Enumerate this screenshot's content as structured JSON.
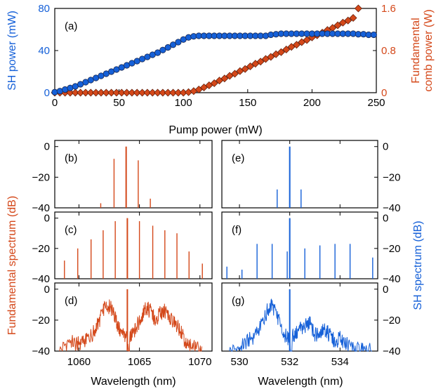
{
  "colors": {
    "sh": "#1560d8",
    "fund": "#d4481a",
    "dot_edge": "#1a2a55",
    "axis": "#000000"
  },
  "chart_data": [
    {
      "id": "a",
      "type": "scatter",
      "panel_label": "(a)",
      "xlabel": "Pump power (mW)",
      "ylabel_left": "SH power (mW)",
      "ylabel_right_lines": [
        "Fundamental",
        "comb power (W)"
      ],
      "xlim": [
        0,
        250
      ],
      "ylim_left": [
        0,
        80
      ],
      "ylim_right": [
        0,
        1.6
      ],
      "x_ticks": [
        "0",
        "50",
        "100",
        "150",
        "200",
        "250"
      ],
      "y_ticks_left": [
        "0",
        "40",
        "80"
      ],
      "y_ticks_right": [
        "0",
        "0.8",
        "1.6"
      ],
      "series": [
        {
          "axis": "left",
          "marker": "circle",
          "x": [
            0,
            4,
            8,
            12,
            16,
            20,
            24,
            28,
            32,
            36,
            40,
            44,
            48,
            52,
            56,
            60,
            64,
            68,
            72,
            76,
            80,
            84,
            88,
            92,
            96,
            100,
            104,
            108,
            112,
            116,
            120,
            124,
            128,
            132,
            136,
            140,
            144,
            148,
            152,
            156,
            160,
            164,
            168,
            172,
            176,
            180,
            184,
            188,
            192,
            196,
            200,
            204,
            208,
            212,
            216,
            220,
            224,
            228,
            232,
            236,
            240,
            244,
            248
          ],
          "y": [
            0.5,
            1.5,
            3,
            4.5,
            6,
            8,
            10,
            12,
            14,
            16,
            18,
            20,
            22,
            24,
            26,
            28,
            30,
            32,
            34,
            36,
            38,
            40.5,
            43,
            45.5,
            48,
            50.5,
            52.5,
            53.5,
            54,
            54,
            54,
            54,
            54,
            54,
            54,
            54,
            54,
            54,
            54,
            54,
            54,
            54,
            55,
            55.5,
            56,
            56,
            56,
            56,
            56,
            56,
            56,
            56,
            56,
            56,
            56,
            56,
            56,
            56,
            56,
            55.5,
            55.5,
            55,
            55
          ]
        },
        {
          "axis": "right",
          "marker": "diamond",
          "x": [
            0,
            4,
            8,
            12,
            16,
            20,
            24,
            28,
            32,
            36,
            40,
            44,
            48,
            52,
            56,
            60,
            64,
            68,
            72,
            76,
            80,
            84,
            88,
            92,
            96,
            100,
            104,
            108,
            112,
            116,
            120,
            124,
            128,
            132,
            136,
            140,
            144,
            148,
            152,
            156,
            160,
            164,
            168,
            172,
            176,
            180,
            184,
            188,
            192,
            196,
            200,
            204,
            208,
            212,
            216,
            220,
            224,
            228,
            232,
            236
          ],
          "y": [
            0,
            0,
            0,
            0,
            0,
            0,
            0,
            0,
            0,
            0,
            0,
            0,
            0,
            0,
            0,
            0,
            0,
            0,
            0,
            0,
            0,
            0,
            0,
            0,
            0,
            0,
            0.01,
            0.03,
            0.06,
            0.1,
            0.14,
            0.18,
            0.23,
            0.27,
            0.32,
            0.36,
            0.41,
            0.45,
            0.5,
            0.55,
            0.59,
            0.64,
            0.68,
            0.73,
            0.77,
            0.82,
            0.87,
            0.91,
            0.96,
            1.0,
            1.05,
            1.09,
            1.14,
            1.19,
            1.23,
            1.28,
            1.33,
            1.37,
            1.42,
            1.6
          ]
        }
      ]
    },
    {
      "id": "b",
      "type": "line",
      "style": "sticks",
      "color": "fund",
      "panel_label": "(b)",
      "xlim": [
        1058,
        1071
      ],
      "ylim": [
        -40,
        4
      ],
      "y_ticks": [
        "0",
        "-20",
        "-40"
      ],
      "x": [
        1061.8,
        1062.9,
        1063.9,
        1064.9,
        1065.9
      ],
      "y": [
        -37,
        -8,
        0,
        -9,
        -34
      ]
    },
    {
      "id": "c",
      "type": "line",
      "style": "sticks",
      "color": "fund",
      "panel_label": "(c)",
      "xlim": [
        1058,
        1071
      ],
      "ylim": [
        -40,
        4
      ],
      "y_ticks": [
        "0",
        "-20",
        "-40"
      ],
      "x": [
        1058.8,
        1059.9,
        1061.0,
        1062.0,
        1063.0,
        1064.0,
        1065.0,
        1066.1,
        1067.1,
        1068.1,
        1069.1,
        1070.2
      ],
      "y": [
        -28,
        -20,
        -14,
        -8,
        -2,
        0,
        -2,
        -5,
        -8,
        -10,
        -22,
        -30
      ]
    },
    {
      "id": "d",
      "type": "line",
      "style": "noisy",
      "color": "fund",
      "panel_label": "(d)",
      "xlim": [
        1058,
        1071
      ],
      "ylim": [
        -40,
        4
      ],
      "y_ticks": [
        "0",
        "-20",
        "-40"
      ],
      "x_ticks": [
        "1060",
        "1065",
        "1070"
      ],
      "xlabel": "Wavelength (nm)",
      "x": [
        1058.4,
        1059.2,
        1059.8,
        1060.2,
        1060.7,
        1061.2,
        1061.6,
        1062.0,
        1062.3,
        1062.6,
        1062.9,
        1063.2,
        1063.6,
        1064.0,
        1064.4,
        1064.8,
        1065.2,
        1065.5,
        1065.9,
        1066.3,
        1066.7,
        1067.1,
        1067.5,
        1067.9,
        1068.3,
        1068.7,
        1069.1,
        1069.6,
        1070.2
      ],
      "y": [
        -40,
        -33,
        -36,
        -34,
        -32,
        -28,
        -22,
        -14,
        -10,
        -12,
        -16,
        -24,
        -30,
        0,
        -30,
        -24,
        -18,
        -12,
        -14,
        -20,
        -16,
        -14,
        -18,
        -22,
        -26,
        -32,
        -36,
        -38,
        -40
      ]
    },
    {
      "id": "e",
      "type": "line",
      "style": "sticks",
      "color": "sh",
      "panel_label": "(e)",
      "xlim": [
        529.3,
        535.5
      ],
      "ylim": [
        -40,
        4
      ],
      "y_ticks": [
        "0",
        "-20",
        "-40"
      ],
      "x": [
        531.5,
        532.0,
        532.45
      ],
      "y": [
        -28,
        0,
        -28
      ]
    },
    {
      "id": "f",
      "type": "line",
      "style": "sticks",
      "color": "sh",
      "panel_label": "(f)",
      "xlim": [
        529.3,
        535.5
      ],
      "ylim": [
        -40,
        4
      ],
      "y_ticks": [
        "0",
        "-20",
        "-40"
      ],
      "ylabel": "SH spectrum (dB)",
      "x": [
        529.5,
        530.1,
        530.7,
        531.3,
        531.9,
        532.0,
        532.6,
        533.2,
        533.8,
        534.4,
        535.3
      ],
      "y": [
        -32,
        -34,
        -17,
        -17,
        -22,
        0,
        -20,
        -18,
        -17,
        -17,
        -26
      ]
    },
    {
      "id": "g",
      "type": "line",
      "style": "noisy",
      "color": "sh",
      "panel_label": "(g)",
      "xlim": [
        529.3,
        535.5
      ],
      "ylim": [
        -40,
        4
      ],
      "y_ticks": [
        "0",
        "-20",
        "-40"
      ],
      "x_ticks": [
        "530",
        "532",
        "534"
      ],
      "xlabel": "Wavelength (nm)",
      "x": [
        529.6,
        530.0,
        530.3,
        530.6,
        530.9,
        531.1,
        531.3,
        531.5,
        531.7,
        531.9,
        532.0,
        532.2,
        532.4,
        532.6,
        532.8,
        533.0,
        533.2,
        533.4,
        533.6,
        533.8,
        534.0,
        534.3,
        534.6,
        534.9,
        535.3
      ],
      "y": [
        -40,
        -38,
        -34,
        -30,
        -22,
        -14,
        -10,
        -18,
        -26,
        -32,
        0,
        -30,
        -26,
        -24,
        -22,
        -30,
        -28,
        -26,
        -30,
        -34,
        -32,
        -36,
        -38,
        -39,
        -40
      ]
    }
  ],
  "shared": {
    "fund_ylabel": "Fundamental spectrum (dB)"
  }
}
